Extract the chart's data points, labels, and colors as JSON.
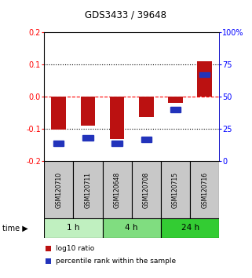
{
  "title": "GDS3433 / 39648",
  "samples": [
    "GSM120710",
    "GSM120711",
    "GSM120648",
    "GSM120708",
    "GSM120715",
    "GSM120716"
  ],
  "log10_ratio": [
    -0.101,
    -0.09,
    -0.13,
    -0.063,
    -0.02,
    0.11
  ],
  "percentile_rank": [
    14,
    18,
    14,
    17,
    40,
    67
  ],
  "groups": [
    {
      "label": "1 h",
      "indices": [
        0,
        1
      ],
      "color": "#c0f0c0"
    },
    {
      "label": "4 h",
      "indices": [
        2,
        3
      ],
      "color": "#80dd80"
    },
    {
      "label": "24 h",
      "indices": [
        4,
        5
      ],
      "color": "#33cc33"
    }
  ],
  "ylim": [
    -0.2,
    0.2
  ],
  "yticks_left": [
    -0.2,
    -0.1,
    0.0,
    0.1,
    0.2
  ],
  "yticks_right": [
    0,
    25,
    50,
    75,
    100
  ],
  "bar_color": "#bb1111",
  "blue_color": "#2233bb",
  "label_bg_color": "#c8c8c8",
  "legend_log10": "log10 ratio",
  "legend_pct": "percentile rank within the sample",
  "bar_width": 0.5
}
